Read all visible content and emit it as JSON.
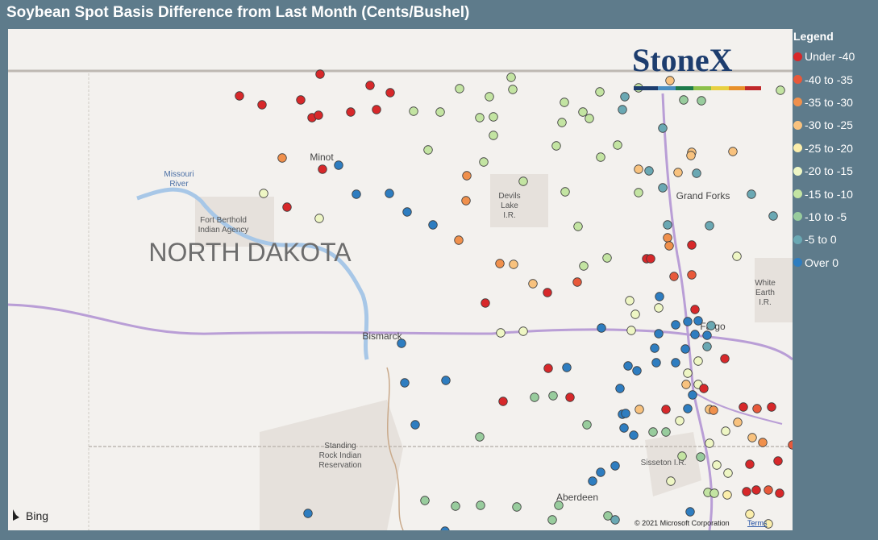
{
  "header": {
    "title": "Soybean Spot Basis Difference from Last Month (Cents/Bushel)"
  },
  "legend": {
    "title": "Legend",
    "items": [
      {
        "label": "Under -40",
        "color": "#d7282a"
      },
      {
        "label": "-40 to -35",
        "color": "#e8593a"
      },
      {
        "label": "-35 to -30",
        "color": "#f0904c"
      },
      {
        "label": "-30 to -25",
        "color": "#f8c27e"
      },
      {
        "label": "-25 to -20",
        "color": "#fbeeab"
      },
      {
        "label": "-20 to -15",
        "color": "#eef6c4"
      },
      {
        "label": "-15 to -10",
        "color": "#c3e4a2"
      },
      {
        "label": "-10 to -5",
        "color": "#98cc9d"
      },
      {
        "label": "-5 to 0",
        "color": "#6aa8b3"
      },
      {
        "label": "Over 0",
        "color": "#2e7dc0"
      }
    ]
  },
  "map": {
    "state": "NORTH DAKOTA",
    "places": {
      "minot": "Minot",
      "bismarck": "Bismarck",
      "grand_forks": "Grand Forks",
      "fargo": "Fargo",
      "aberdeen": "Aberdeen"
    },
    "areas": {
      "missouri_river": [
        "Missouri",
        "River"
      ],
      "fort_berthold": [
        "Fort Berthold",
        "Indian Agency"
      ],
      "devils_lake": [
        "Devils",
        "Lake",
        "I.R."
      ],
      "white_earth": [
        "White",
        "Earth",
        "I.R."
      ],
      "standing_rock": [
        "Standing",
        "Rock Indian",
        "Reservation"
      ],
      "sisseton": [
        "Sisseton I.R."
      ]
    },
    "logo": "StoneX",
    "provider": "Bing",
    "copyright": "© 2021 Microsoft Corporation",
    "terms": "Terms"
  }
}
